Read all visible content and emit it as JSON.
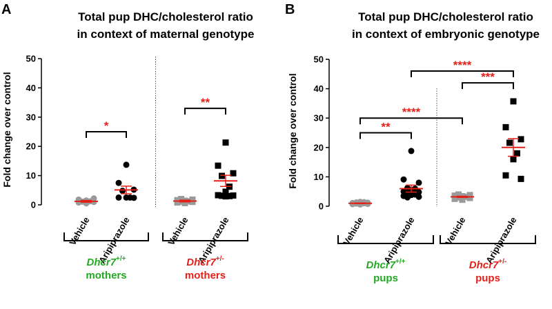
{
  "colors": {
    "axis": "#000000",
    "mean": "#e32119",
    "star": "#e32119",
    "wt": "#22aa22",
    "het": "#e32119",
    "vehicle_marker": "#9a9a9a",
    "drug_marker": "#000000"
  },
  "chart_data": [
    {
      "panel": "A",
      "type": "scatter",
      "title": [
        "Total pup DHC/cholesterol ratio",
        "in context of maternal genotype"
      ],
      "ylabel": "Fold change over control",
      "ylim": [
        0,
        50
      ],
      "yticks": [
        0,
        10,
        20,
        30,
        40,
        50
      ],
      "categories": [
        "Vehicle",
        "Aripiprazole",
        "Vehicle",
        "Aripiprazole"
      ],
      "series": [
        {
          "category": 0,
          "marker": "circle",
          "fill": "#9a9a9a",
          "values": [
            0.5,
            0.8,
            1.0,
            1.1,
            1.2,
            1.5,
            1.8,
            2.2
          ],
          "mean": 1.2,
          "sem": 0.3
        },
        {
          "category": 1,
          "marker": "circle",
          "fill": "#000000",
          "values": [
            13.7,
            7.5,
            5.2,
            4.8,
            2.5,
            2.5,
            2.5,
            2.4
          ],
          "mean": 5.1,
          "sem": 1.3
        },
        {
          "category": 2,
          "marker": "square",
          "fill": "#9a9a9a",
          "values": [
            0.6,
            0.8,
            1.0,
            1.1,
            1.2,
            1.4,
            1.6,
            1.8,
            2.0
          ],
          "mean": 1.3,
          "sem": 0.3
        },
        {
          "category": 3,
          "marker": "square",
          "fill": "#000000",
          "values": [
            21.3,
            13.4,
            10.8,
            9.9,
            6.2,
            4.5,
            3.3,
            3.2,
            3.1,
            3.0,
            2.9
          ],
          "mean": 8.2,
          "sem": 1.9
        }
      ],
      "comparisons": [
        {
          "from": 0,
          "to": 1,
          "label": "*",
          "y": 25
        },
        {
          "from": 2,
          "to": 3,
          "label": "**",
          "y": 33
        }
      ],
      "separator_after": 1,
      "groups": [
        {
          "categories": [
            0,
            1
          ],
          "gene": "Dhcr7",
          "sup": "+/+",
          "label": "mothers",
          "color": "#22aa22"
        },
        {
          "categories": [
            2,
            3
          ],
          "gene": "Dhcr7",
          "sup": "+/-",
          "label": "mothers",
          "color": "#e32119"
        }
      ]
    },
    {
      "panel": "B",
      "type": "scatter",
      "title": [
        "Total pup DHC/cholesterol ratio",
        "in context of embryonic genotype"
      ],
      "ylabel": "Fold change over control",
      "ylim": [
        0,
        50
      ],
      "yticks": [
        0,
        10,
        20,
        30,
        40,
        50
      ],
      "categories": [
        "Vehicle",
        "Aripiprazole",
        "Vehicle",
        "Aripiprazole"
      ],
      "series": [
        {
          "category": 0,
          "marker": "circle",
          "fill": "#9a9a9a",
          "values": [
            0.6,
            0.7,
            0.8,
            0.9,
            1.0,
            1.0,
            1.1,
            1.2,
            1.3,
            1.4,
            1.5
          ],
          "mean": 1.0,
          "sem": 0.1
        },
        {
          "category": 1,
          "marker": "circle",
          "fill": "#000000",
          "values": [
            18.8,
            9.1,
            8.0,
            6.2,
            6.0,
            5.5,
            5.0,
            4.8,
            4.2,
            4.0,
            3.8,
            3.5,
            3.2,
            3.0
          ],
          "mean": 6.0,
          "sem": 1.2
        },
        {
          "category": 2,
          "marker": "square",
          "fill": "#9a9a9a",
          "values": [
            2.2,
            2.5,
            2.8,
            3.0,
            3.2,
            3.4,
            3.6,
            3.8,
            4.0
          ],
          "mean": 3.2,
          "sem": 0.2
        },
        {
          "category": 3,
          "marker": "square",
          "fill": "#000000",
          "values": [
            35.7,
            26.9,
            22.8,
            21.6,
            18.0,
            16.0,
            10.5,
            9.3
          ],
          "mean": 20.0,
          "sem": 3.0
        }
      ],
      "comparisons": [
        {
          "from": 0,
          "to": 1,
          "label": "**",
          "y": 25
        },
        {
          "from": 0,
          "to": 2,
          "label": "****",
          "y": 30
        },
        {
          "from": 1,
          "to": 3,
          "label": "****",
          "y": 46
        },
        {
          "from": 2,
          "to": 3,
          "label": "***",
          "y": 42
        }
      ],
      "separator_after": 1,
      "groups": [
        {
          "categories": [
            0,
            1
          ],
          "gene": "Dhcr7",
          "sup": "+/+",
          "label": "pups",
          "color": "#22aa22"
        },
        {
          "categories": [
            2,
            3
          ],
          "gene": "Dhcr7",
          "sup": "+/-",
          "label": "pups",
          "color": "#e32119"
        }
      ]
    }
  ]
}
